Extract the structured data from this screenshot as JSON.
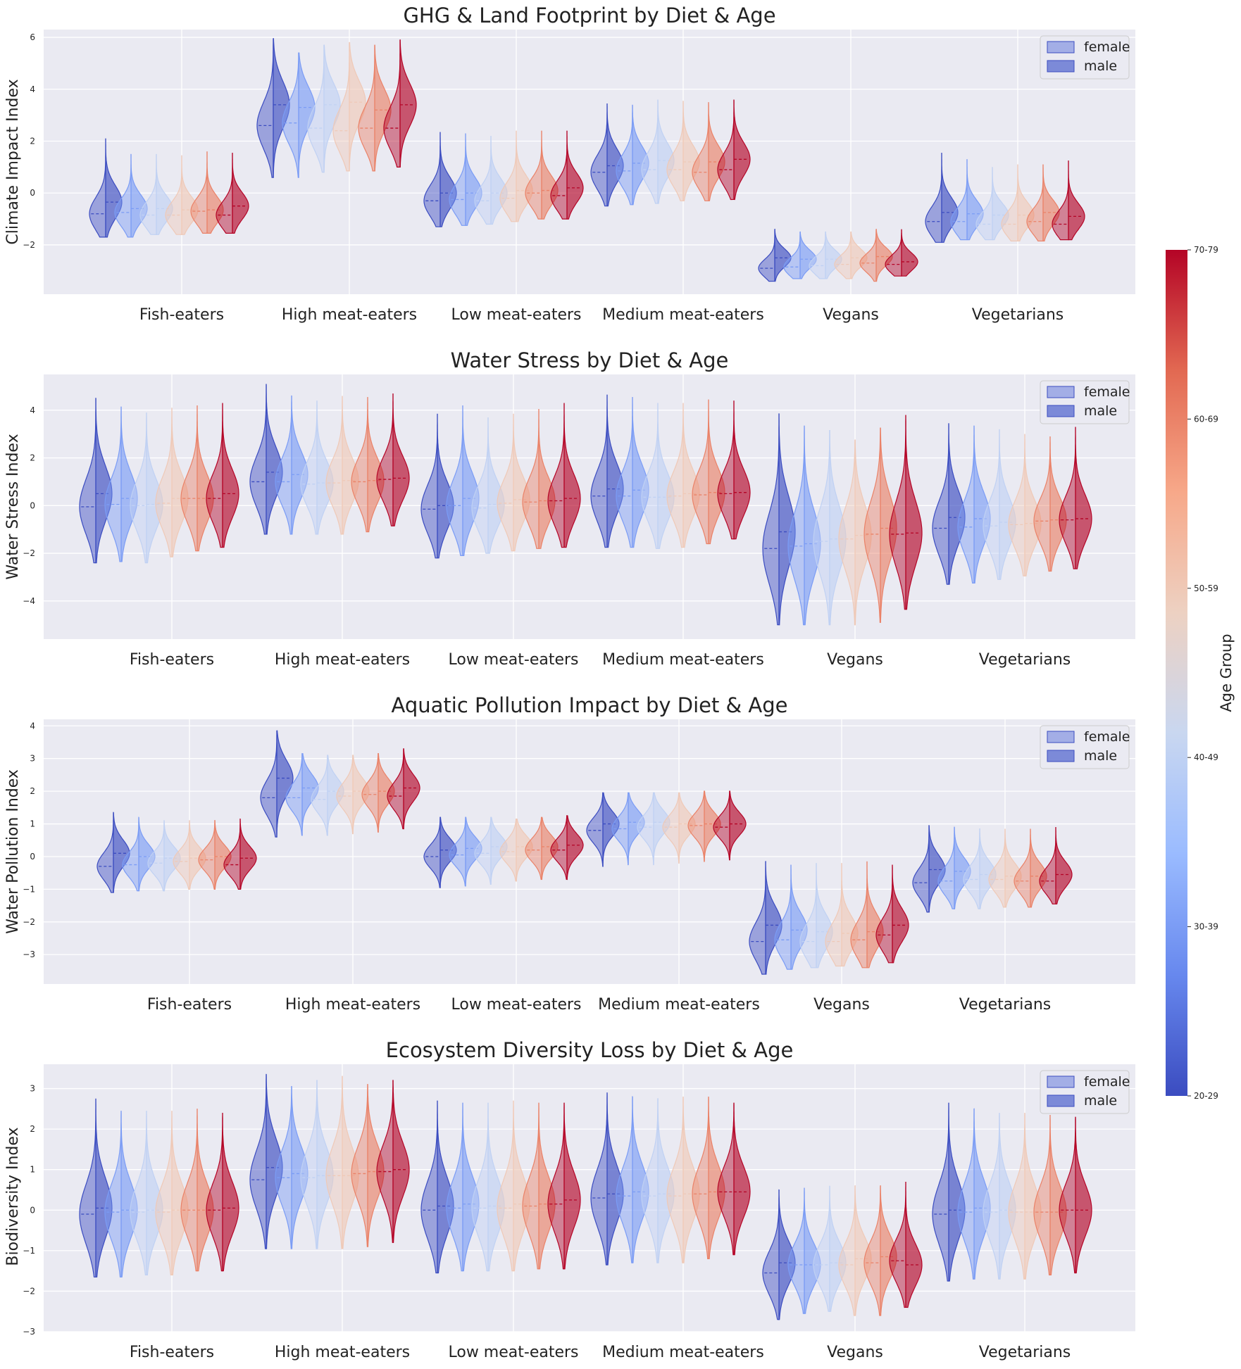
{
  "colormap_stops": [
    "#3b4cc0",
    "#6788ee",
    "#9abbff",
    "#c9d7f0",
    "#edd1c2",
    "#f7a889",
    "#e26952",
    "#b40426"
  ],
  "plot_background": "#eaeaf2",
  "legend": {
    "entries": [
      {
        "label": "female",
        "color": "#a3aee6"
      },
      {
        "label": "male",
        "color": "#7c8ad8"
      }
    ]
  },
  "colorbar": {
    "label": "Age Group",
    "ticks": [
      "20-29",
      "30-39",
      "40-49",
      "50-59",
      "60-69",
      "70-79"
    ]
  },
  "chart_data": [
    {
      "type": "violin",
      "title": "GHG & Land Footprint by Diet & Age",
      "ylabel": "Climate Impact Index",
      "ylim": [
        -3.9,
        6.3
      ],
      "yticks": [
        6,
        4,
        2,
        0,
        -2
      ],
      "categories": [
        "Fish-eaters",
        "High meat-eaters",
        "Low meat-eaters",
        "Medium meat-eaters",
        "Vegans",
        "Vegetarians"
      ],
      "age_groups": [
        "20-29",
        "30-39",
        "40-49",
        "50-59",
        "60-69",
        "70-79"
      ],
      "orientation": "horizontal-split",
      "series": [
        {
          "name": "female",
          "medians": [
            [
              -0.8,
              -0.75,
              -0.85,
              -0.85,
              -0.7,
              -0.85
            ],
            [
              2.6,
              2.7,
              2.5,
              2.4,
              2.5,
              2.5
            ],
            [
              -0.3,
              -0.25,
              -0.3,
              -0.2,
              0.0,
              -0.1
            ],
            [
              0.8,
              0.85,
              0.9,
              0.9,
              0.8,
              0.9
            ],
            [
              -2.9,
              -2.85,
              -2.8,
              -2.75,
              -2.7,
              -2.75
            ],
            [
              -1.1,
              -1.1,
              -1.2,
              -1.2,
              -1.1,
              -1.2
            ]
          ],
          "spread": [
            0.5,
            0.5,
            0.5,
            0.5,
            0.5,
            0.5
          ],
          "min": [
            [
              -1.7,
              -1.7,
              -1.6,
              -1.6,
              -1.55,
              -1.55
            ],
            [
              0.6,
              0.6,
              0.8,
              0.85,
              0.85,
              1.0
            ],
            [
              -1.3,
              -1.25,
              -1.2,
              -1.1,
              -1.0,
              -1.0
            ],
            [
              -0.5,
              -0.45,
              -0.4,
              -0.3,
              -0.3,
              -0.25
            ],
            [
              -3.4,
              -3.3,
              -3.3,
              -3.3,
              -3.4,
              -3.2
            ],
            [
              -1.9,
              -1.8,
              -1.8,
              -1.85,
              -1.85,
              -1.8
            ]
          ],
          "max": [
            [
              2.1,
              1.5,
              1.5,
              1.45,
              1.6,
              1.55
            ],
            [
              5.95,
              5.4,
              5.7,
              5.8,
              5.7,
              5.9
            ],
            [
              2.35,
              2.3,
              2.2,
              2.4,
              2.4,
              2.4
            ],
            [
              3.45,
              3.4,
              3.6,
              3.55,
              3.5,
              3.6
            ],
            [
              -1.4,
              -1.5,
              -1.5,
              -1.5,
              -1.4,
              -1.4
            ],
            [
              1.55,
              1.3,
              1.0,
              1.1,
              1.1,
              1.25
            ]
          ]
        },
        {
          "name": "male",
          "medians": [
            [
              -0.35,
              -0.6,
              -0.6,
              -0.65,
              -0.65,
              -0.5
            ],
            [
              3.4,
              3.3,
              3.4,
              3.5,
              3.2,
              3.4
            ],
            [
              0.0,
              0.0,
              0.0,
              0.1,
              0.1,
              0.2
            ],
            [
              1.05,
              1.15,
              1.25,
              1.2,
              1.2,
              1.3
            ],
            [
              -2.5,
              -2.55,
              -2.55,
              -2.5,
              -2.45,
              -2.65
            ],
            [
              -0.75,
              -0.8,
              -0.85,
              -0.85,
              -0.75,
              -0.9
            ]
          ],
          "spread": [
            0.5,
            0.5,
            0.5,
            0.5,
            0.5,
            0.5
          ]
        }
      ]
    },
    {
      "type": "violin",
      "title": "Water Stress by Diet & Age",
      "ylabel": "Water Stress Index",
      "ylim": [
        -5.6,
        5.5
      ],
      "yticks": [
        4,
        2,
        0,
        -2,
        -4
      ],
      "categories": [
        "Fish-eaters",
        "High meat-eaters",
        "Low meat-eaters",
        "Medium meat-eaters",
        "Vegans",
        "Vegetarians"
      ],
      "age_groups": [
        "20-29",
        "30-39",
        "40-49",
        "50-59",
        "60-69",
        "70-79"
      ],
      "orientation": "vertical-split",
      "series": [
        {
          "name": "female",
          "medians": [
            [
              -0.05,
              0.05,
              0.0,
              0.1,
              0.3,
              0.3
            ],
            [
              1.0,
              1.0,
              0.9,
              0.95,
              1.0,
              1.1
            ],
            [
              -0.15,
              0.0,
              -0.1,
              0.1,
              0.15,
              0.2
            ],
            [
              0.4,
              0.4,
              0.35,
              0.4,
              0.45,
              0.5
            ],
            [
              -1.8,
              -1.7,
              -1.5,
              -1.4,
              -1.2,
              -1.2
            ],
            [
              -0.95,
              -0.9,
              -0.85,
              -0.8,
              -0.65,
              -0.6
            ]
          ],
          "spread": [
            0.5,
            0.5,
            0.5,
            0.5,
            0.5,
            0.5
          ],
          "min": [
            [
              -2.4,
              -2.35,
              -2.4,
              -2.15,
              -1.9,
              -1.75
            ],
            [
              -1.2,
              -1.2,
              -1.2,
              -1.2,
              -1.1,
              -0.85
            ],
            [
              -2.2,
              -2.1,
              -2.0,
              -1.9,
              -1.8,
              -1.75
            ],
            [
              -1.75,
              -1.75,
              -1.8,
              -1.75,
              -1.6,
              -1.4
            ],
            [
              -5.0,
              -5.0,
              -5.0,
              -5.0,
              -4.9,
              -4.35
            ],
            [
              -3.3,
              -3.25,
              -3.1,
              -2.95,
              -2.75,
              -2.65
            ]
          ],
          "max": [
            [
              4.5,
              4.15,
              3.9,
              4.1,
              4.2,
              4.3
            ],
            [
              5.1,
              4.6,
              4.4,
              4.6,
              4.55,
              4.7
            ],
            [
              3.85,
              4.2,
              3.7,
              3.85,
              4.05,
              4.3
            ],
            [
              4.65,
              4.55,
              4.3,
              4.3,
              4.45,
              4.4
            ],
            [
              3.85,
              3.35,
              3.15,
              2.75,
              3.25,
              3.8
            ],
            [
              3.45,
              3.35,
              3.2,
              3.0,
              2.9,
              3.3
            ]
          ]
        },
        {
          "name": "male",
          "medians": [
            [
              0.5,
              0.3,
              0.05,
              0.3,
              0.3,
              0.5
            ],
            [
              1.4,
              1.3,
              0.95,
              1.05,
              1.05,
              1.15
            ],
            [
              0.0,
              0.3,
              0.05,
              0.25,
              0.2,
              0.3
            ],
            [
              0.7,
              0.65,
              0.35,
              0.5,
              0.55,
              0.55
            ],
            [
              -1.1,
              -1.6,
              -1.4,
              -1.25,
              -0.95,
              -1.15
            ],
            [
              -0.5,
              -0.55,
              -0.7,
              -0.75,
              -0.6,
              -0.55
            ]
          ],
          "spread": [
            0.5,
            0.5,
            0.5,
            0.5,
            0.5,
            0.5
          ]
        }
      ]
    },
    {
      "type": "violin",
      "title": "Aquatic Pollution Impact by Diet & Age",
      "ylabel": "Water Pollution Index",
      "ylim": [
        -3.9,
        4.2
      ],
      "yticks": [
        4,
        3,
        2,
        1,
        0,
        -1,
        -2,
        -3
      ],
      "categories": [
        "Fish-eaters",
        "High meat-eaters",
        "Low meat-eaters",
        "Medium meat-eaters",
        "Vegans",
        "Vegetarians"
      ],
      "age_groups": [
        "20-29",
        "30-39",
        "40-49",
        "50-59",
        "60-69",
        "70-79"
      ],
      "orientation": "horizontal-split",
      "series": [
        {
          "name": "female",
          "medians": [
            [
              -0.3,
              -0.25,
              -0.2,
              -0.15,
              -0.1,
              -0.25
            ],
            [
              1.8,
              1.8,
              1.75,
              1.85,
              1.9,
              1.85
            ],
            [
              0.0,
              0.05,
              0.1,
              0.15,
              0.2,
              0.2
            ],
            [
              0.8,
              0.85,
              0.9,
              0.9,
              0.95,
              0.9
            ],
            [
              -2.6,
              -2.55,
              -2.6,
              -2.6,
              -2.55,
              -2.4
            ],
            [
              -0.8,
              -0.75,
              -0.7,
              -0.7,
              -0.75,
              -0.75
            ]
          ],
          "spread": [
            0.5,
            0.5,
            0.5,
            0.5,
            0.5,
            0.5
          ],
          "min": [
            [
              -1.1,
              -1.05,
              -1.05,
              -1.0,
              -1.0,
              -1.0
            ],
            [
              0.6,
              0.65,
              0.65,
              0.7,
              0.75,
              0.85
            ],
            [
              -0.95,
              -0.9,
              -0.85,
              -0.75,
              -0.7,
              -0.7
            ],
            [
              -0.3,
              -0.25,
              -0.25,
              -0.2,
              -0.15,
              -0.1
            ],
            [
              -3.6,
              -3.45,
              -3.4,
              -3.35,
              -3.4,
              -3.25
            ],
            [
              -1.7,
              -1.6,
              -1.6,
              -1.55,
              -1.55,
              -1.45
            ]
          ],
          "max": [
            [
              1.35,
              1.2,
              1.1,
              1.1,
              1.1,
              1.15
            ],
            [
              3.85,
              3.15,
              3.1,
              3.1,
              3.15,
              3.3
            ],
            [
              1.2,
              1.2,
              1.2,
              1.15,
              1.2,
              1.25
            ],
            [
              1.95,
              1.95,
              1.95,
              1.95,
              2.0,
              2.0
            ],
            [
              -0.15,
              -0.25,
              -0.2,
              -0.2,
              -0.15,
              -0.25
            ],
            [
              0.95,
              0.9,
              0.85,
              0.85,
              0.85,
              0.9
            ]
          ]
        },
        {
          "name": "male",
          "medians": [
            [
              0.1,
              0.0,
              -0.05,
              -0.05,
              0.0,
              -0.05
            ],
            [
              2.4,
              2.1,
              2.0,
              2.0,
              2.0,
              2.1
            ],
            [
              0.2,
              0.25,
              0.3,
              0.3,
              0.3,
              0.35
            ],
            [
              1.0,
              1.05,
              1.05,
              1.0,
              1.0,
              1.0
            ],
            [
              -2.1,
              -2.25,
              -2.3,
              -2.35,
              -2.3,
              -2.1
            ],
            [
              -0.4,
              -0.45,
              -0.55,
              -0.6,
              -0.6,
              -0.55
            ]
          ],
          "spread": [
            0.5,
            0.5,
            0.5,
            0.5,
            0.5,
            0.5
          ]
        }
      ]
    },
    {
      "type": "violin",
      "title": "Ecosystem Diversity Loss  by Diet & Age",
      "ylabel": "Biodiversity Index",
      "ylim": [
        -3.0,
        3.6
      ],
      "yticks": [
        3,
        2,
        1,
        0,
        -1,
        -2,
        -3
      ],
      "categories": [
        "Fish-eaters",
        "High meat-eaters",
        "Low meat-eaters",
        "Medium meat-eaters",
        "Vegans",
        "Vegetarians"
      ],
      "age_groups": [
        "20-29",
        "30-39",
        "40-49",
        "50-59",
        "60-69",
        "70-79"
      ],
      "orientation": "vertical-split",
      "series": [
        {
          "name": "female",
          "medians": [
            [
              -0.1,
              -0.05,
              -0.05,
              -0.05,
              0.0,
              0.0
            ],
            [
              0.75,
              0.8,
              0.8,
              0.85,
              0.9,
              0.95
            ],
            [
              0.0,
              0.05,
              0.05,
              0.05,
              0.1,
              0.15
            ],
            [
              0.3,
              0.35,
              0.35,
              0.35,
              0.4,
              0.45
            ],
            [
              -1.55,
              -1.35,
              -1.35,
              -1.35,
              -1.3,
              -1.25
            ],
            [
              -0.1,
              -0.05,
              -0.05,
              -0.05,
              -0.05,
              0.0
            ]
          ],
          "spread": [
            0.5,
            0.5,
            0.5,
            0.5,
            0.5,
            0.5
          ],
          "min": [
            [
              -1.65,
              -1.65,
              -1.6,
              -1.6,
              -1.5,
              -1.5
            ],
            [
              -0.95,
              -0.95,
              -0.95,
              -0.95,
              -0.9,
              -0.8
            ],
            [
              -1.55,
              -1.5,
              -1.5,
              -1.5,
              -1.45,
              -1.45
            ],
            [
              -1.35,
              -1.3,
              -1.3,
              -1.3,
              -1.2,
              -1.1
            ],
            [
              -2.7,
              -2.55,
              -2.5,
              -2.6,
              -2.6,
              -2.4
            ],
            [
              -1.75,
              -1.7,
              -1.7,
              -1.7,
              -1.6,
              -1.55
            ]
          ],
          "max": [
            [
              2.75,
              2.45,
              2.45,
              2.45,
              2.5,
              2.4
            ],
            [
              3.35,
              3.05,
              3.2,
              3.3,
              3.1,
              3.2
            ],
            [
              2.7,
              2.65,
              2.65,
              2.7,
              2.65,
              2.65
            ],
            [
              2.9,
              2.8,
              2.75,
              2.8,
              2.8,
              2.65
            ],
            [
              0.5,
              0.55,
              0.6,
              0.6,
              0.6,
              0.7
            ],
            [
              2.65,
              2.5,
              2.4,
              2.4,
              2.35,
              2.3
            ]
          ]
        },
        {
          "name": "male",
          "medians": [
            [
              0.05,
              0.0,
              0.0,
              0.0,
              0.0,
              0.05
            ],
            [
              1.05,
              0.9,
              0.85,
              0.85,
              0.95,
              1.0
            ],
            [
              0.1,
              0.15,
              0.1,
              0.15,
              0.15,
              0.25
            ],
            [
              0.4,
              0.45,
              0.4,
              0.4,
              0.45,
              0.45
            ],
            [
              -1.3,
              -1.35,
              -1.3,
              -1.2,
              -1.15,
              -1.35
            ],
            [
              0.0,
              0.05,
              0.0,
              -0.05,
              -0.05,
              0.0
            ]
          ],
          "spread": [
            0.5,
            0.5,
            0.5,
            0.5,
            0.5,
            0.5
          ]
        }
      ]
    }
  ]
}
